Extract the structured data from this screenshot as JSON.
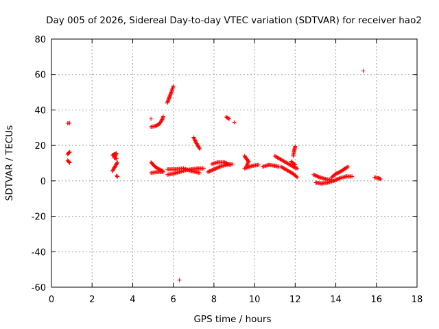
{
  "chart_data": {
    "type": "scatter",
    "title": "Day 005 of 2026, Sidereal Day-to-day VTEC variation (SDTVAR) for receiver hao2",
    "xlabel": "GPS time / hours",
    "ylabel": "SDTVAR / TECUs",
    "xlim": [
      0,
      18
    ],
    "ylim": [
      -60,
      80
    ],
    "xticks": [
      0,
      2,
      4,
      6,
      8,
      10,
      12,
      14,
      16,
      18
    ],
    "yticks": [
      -60,
      -40,
      -20,
      0,
      20,
      40,
      60,
      80
    ],
    "x_tick_labels": [
      "0",
      "2",
      "4",
      "6",
      "8",
      "10",
      "12",
      "14",
      "16",
      "18"
    ],
    "y_tick_labels": [
      "-60",
      "-40",
      "-20",
      "0",
      "20",
      "40",
      "60",
      "80"
    ],
    "grid": true,
    "marker": "plus",
    "colors": {
      "marker": "#ff0000",
      "grid": "#a0a0a0",
      "frame": "#000000"
    },
    "series": [
      {
        "segments": [
          [
            [
              0.8,
              32.5
            ],
            [
              0.9,
              32.6
            ]
          ],
          [
            [
              0.8,
              15.0
            ],
            [
              0.85,
              15.8
            ],
            [
              0.9,
              16.3
            ]
          ],
          [
            [
              0.8,
              11.5
            ],
            [
              0.85,
              10.8
            ],
            [
              0.9,
              10.2
            ]
          ],
          [
            [
              3.0,
              14.5
            ],
            [
              3.1,
              15.0
            ],
            [
              3.2,
              15.5
            ],
            [
              3.1,
              13.0
            ],
            [
              3.2,
              12.5
            ]
          ],
          [
            [
              3.0,
              5.5
            ],
            [
              3.1,
              7.5
            ],
            [
              3.2,
              9.5
            ],
            [
              3.25,
              10.5
            ]
          ],
          [
            [
              3.2,
              2.8
            ],
            [
              3.25,
              2.4
            ]
          ],
          [
            [
              4.9,
              35.0
            ]
          ],
          [
            [
              4.9,
              30.5
            ],
            [
              5.1,
              30.8
            ],
            [
              5.3,
              32.0
            ],
            [
              5.45,
              34.5
            ],
            [
              5.5,
              36.5
            ]
          ],
          [
            [
              5.7,
              44.0
            ],
            [
              5.8,
              47.0
            ],
            [
              5.9,
              50.0
            ],
            [
              6.0,
              53.5
            ]
          ],
          [
            [
              4.9,
              10.5
            ],
            [
              5.1,
              8.0
            ],
            [
              5.3,
              6.5
            ],
            [
              5.5,
              5.5
            ]
          ],
          [
            [
              4.9,
              4.5
            ],
            [
              5.2,
              5.0
            ],
            [
              5.5,
              5.0
            ]
          ],
          [
            [
              5.7,
              3.5
            ],
            [
              6.0,
              4.0
            ],
            [
              6.3,
              5.0
            ],
            [
              6.6,
              6.0
            ],
            [
              6.9,
              6.5
            ],
            [
              7.2,
              7.0
            ],
            [
              7.5,
              7.0
            ]
          ],
          [
            [
              5.7,
              6.5
            ],
            [
              6.1,
              6.5
            ],
            [
              6.5,
              7.0
            ],
            [
              6.9,
              5.5
            ],
            [
              7.3,
              4.5
            ]
          ],
          [
            [
              7.0,
              24.5
            ],
            [
              7.1,
              22.0
            ],
            [
              7.2,
              20.0
            ],
            [
              7.3,
              18.0
            ]
          ],
          [
            [
              6.3,
              -56.0
            ]
          ],
          [
            [
              7.7,
              5.0
            ],
            [
              8.0,
              6.5
            ],
            [
              8.3,
              8.0
            ],
            [
              8.6,
              9.0
            ],
            [
              8.9,
              9.5
            ]
          ],
          [
            [
              7.9,
              9.5
            ],
            [
              8.2,
              10.5
            ],
            [
              8.5,
              10.5
            ],
            [
              8.8,
              9.0
            ]
          ],
          [
            [
              8.6,
              36.0
            ],
            [
              8.75,
              35.0
            ]
          ],
          [
            [
              9.0,
              33.0
            ]
          ],
          [
            [
              9.5,
              14.0
            ],
            [
              9.7,
              11.0
            ],
            [
              9.6,
              8.0
            ]
          ],
          [
            [
              9.5,
              7.0
            ],
            [
              9.9,
              8.5
            ],
            [
              10.2,
              9.0
            ]
          ],
          [
            [
              10.4,
              8.0
            ],
            [
              10.7,
              9.0
            ],
            [
              11.0,
              8.5
            ],
            [
              11.2,
              8.0
            ]
          ],
          [
            [
              11.0,
              14.0
            ],
            [
              11.3,
              12.0
            ],
            [
              11.6,
              10.0
            ],
            [
              11.9,
              8.0
            ],
            [
              12.1,
              7.0
            ]
          ],
          [
            [
              11.3,
              8.0
            ],
            [
              11.6,
              6.0
            ],
            [
              11.9,
              4.0
            ],
            [
              12.1,
              2.0
            ]
          ],
          [
            [
              11.9,
              14.0
            ],
            [
              11.95,
              17.0
            ],
            [
              12.0,
              19.5
            ]
          ],
          [
            [
              11.8,
              11.0
            ],
            [
              12.0,
              9.0
            ]
          ],
          [
            [
              12.9,
              3.5
            ],
            [
              13.2,
              2.0
            ],
            [
              13.5,
              1.0
            ],
            [
              13.8,
              0.5
            ]
          ],
          [
            [
              13.0,
              -1.0
            ],
            [
              13.3,
              -1.5
            ],
            [
              13.6,
              -1.0
            ],
            [
              13.9,
              0.0
            ],
            [
              14.2,
              1.5
            ],
            [
              14.5,
              2.5
            ],
            [
              14.8,
              2.5
            ]
          ],
          [
            [
              13.8,
              2.0
            ],
            [
              14.0,
              4.0
            ],
            [
              14.2,
              5.0
            ],
            [
              14.4,
              6.5
            ],
            [
              14.6,
              8.0
            ]
          ],
          [
            [
              15.35,
              62.0
            ]
          ],
          [
            [
              15.9,
              2.0
            ],
            [
              16.1,
              1.5
            ],
            [
              16.2,
              1.0
            ]
          ]
        ]
      }
    ]
  }
}
